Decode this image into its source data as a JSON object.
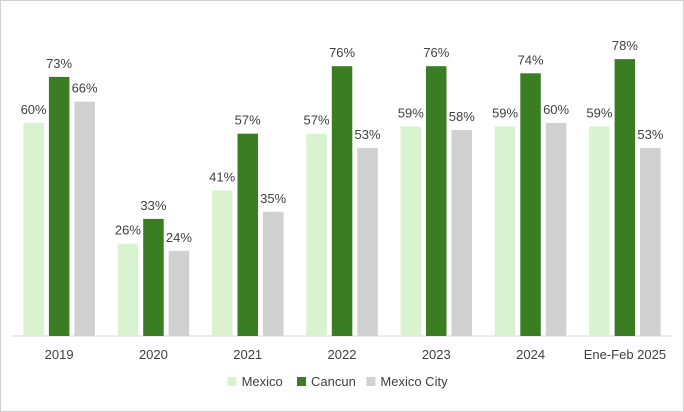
{
  "chart_data": {
    "type": "bar",
    "title": "",
    "xlabel": "",
    "ylabel": "",
    "ylim": [
      0,
      80
    ],
    "grid": false,
    "legend_position": "bottom",
    "value_format": "percent",
    "categories": [
      "2019",
      "2020",
      "2021",
      "2022",
      "2023",
      "2024",
      "Ene-Feb 2025"
    ],
    "series": [
      {
        "name": "Mexico",
        "color": "#d9f2d0",
        "values": [
          60,
          26,
          41,
          57,
          59,
          59,
          59
        ]
      },
      {
        "name": "Cancun",
        "color": "#3a7d22",
        "values": [
          73,
          33,
          57,
          76,
          76,
          74,
          78
        ]
      },
      {
        "name": "Mexico City",
        "color": "#d0d0d0",
        "values": [
          66,
          24,
          35,
          53,
          58,
          60,
          53
        ]
      }
    ],
    "data_labels": [
      [
        "60%",
        "26%",
        "41%",
        "57%",
        "59%",
        "59%",
        "59%"
      ],
      [
        "73%",
        "33%",
        "57%",
        "76%",
        "76%",
        "74%",
        "78%"
      ],
      [
        "66%",
        "24%",
        "35%",
        "53%",
        "58%",
        "60%",
        "53%"
      ]
    ]
  }
}
